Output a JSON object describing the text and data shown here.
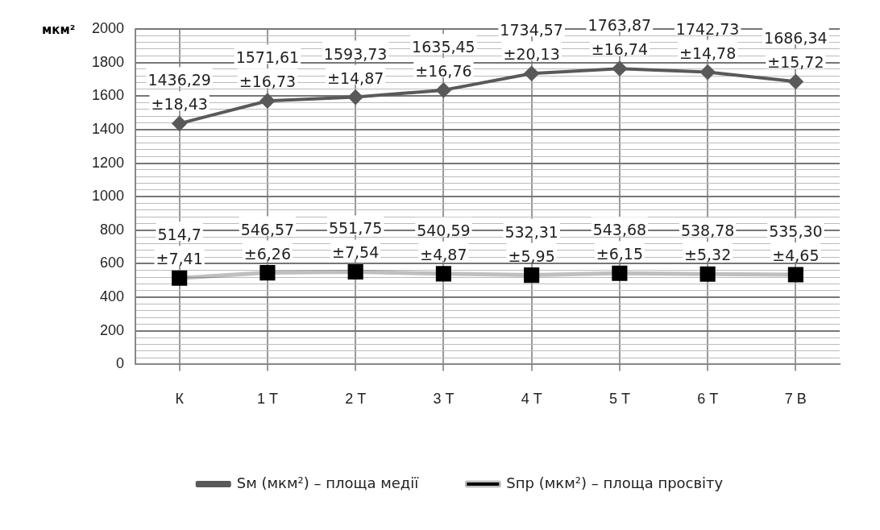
{
  "chart_data": {
    "type": "line",
    "ylabel": "мкм²",
    "categories": [
      "К",
      "1 Т",
      "2 Т",
      "3 Т",
      "4 Т",
      "5 Т",
      "6 Т",
      "7 В"
    ],
    "series": [
      {
        "name": "Sм (мкм²) – площа медії",
        "color": "#595959",
        "marker": "diamond",
        "values": [
          1436.29,
          1571.61,
          1593.73,
          1635.45,
          1734.57,
          1763.87,
          1742.73,
          1686.34
        ],
        "value_labels": [
          "1436,29\n±18,43",
          "1571,61\n±16,73",
          "1593,73\n±14,87",
          "1635,45\n±16,76",
          "1734,57\n±20,13",
          "1763,87\n±16,74",
          "1742,73\n±14,78",
          "1686,34\n±15,72"
        ]
      },
      {
        "name": "Sпр (мкм²) – площа просвіту",
        "color": "#000000",
        "marker": "square",
        "values": [
          514.7,
          546.57,
          551.75,
          540.59,
          532.31,
          543.68,
          538.78,
          535.3
        ],
        "value_labels": [
          "514,7\n±7,41",
          "546,57\n±6,26",
          "551,75\n±7,54",
          "540,59\n±4,87",
          "532,31\n±5,95",
          "543,68\n±6,15",
          "538,78\n±5,32",
          "535,30\n±4,65"
        ]
      }
    ],
    "ylim": [
      0,
      2000
    ],
    "yticks": [
      0,
      {
        "value": 40,
        "label": null
      },
      {
        "value": 80,
        "label": null
      },
      {
        "value": 120,
        "label": null
      },
      {
        "value": 160,
        "label": null
      },
      200,
      {
        "value": 240,
        "label": null
      },
      {
        "value": 280,
        "label": null
      },
      {
        "value": 320,
        "label": null
      },
      {
        "value": 360,
        "label": null
      },
      400,
      {
        "value": 440,
        "label": null
      },
      {
        "value": 480,
        "label": null
      },
      {
        "value": 520,
        "label": null
      },
      {
        "value": 560,
        "label": null
      },
      600,
      {
        "value": 640,
        "label": null
      },
      {
        "value": 680,
        "label": null
      },
      {
        "value": 720,
        "label": null
      },
      {
        "value": 760,
        "label": null
      },
      800,
      {
        "value": 840,
        "label": null
      },
      {
        "value": 880,
        "label": null
      },
      {
        "value": 920,
        "label": null
      },
      {
        "value": 960,
        "label": null
      },
      1000,
      {
        "value": 1040,
        "label": null
      },
      {
        "value": 1080,
        "label": null
      },
      {
        "value": 1120,
        "label": null
      },
      {
        "value": 1160,
        "label": null
      },
      1200,
      {
        "value": 1240,
        "label": null
      },
      {
        "value": 1280,
        "label": null
      },
      {
        "value": 1320,
        "label": null
      },
      {
        "value": 1360,
        "label": null
      },
      1400,
      {
        "value": 1440,
        "label": null
      },
      {
        "value": 1480,
        "label": null
      },
      {
        "value": 1520,
        "label": null
      },
      {
        "value": 1560,
        "label": null
      },
      1600,
      {
        "value": 1640,
        "label": null
      },
      {
        "value": 1680,
        "label": null
      },
      {
        "value": 1720,
        "label": null
      },
      {
        "value": 1760,
        "label": null
      },
      1800,
      {
        "value": 1840,
        "label": null
      },
      {
        "value": 1880,
        "label": null
      },
      {
        "value": 1920,
        "label": null
      },
      {
        "value": 1960,
        "label": null
      },
      2000
    ],
    "grid": true,
    "legend": "bottom"
  }
}
